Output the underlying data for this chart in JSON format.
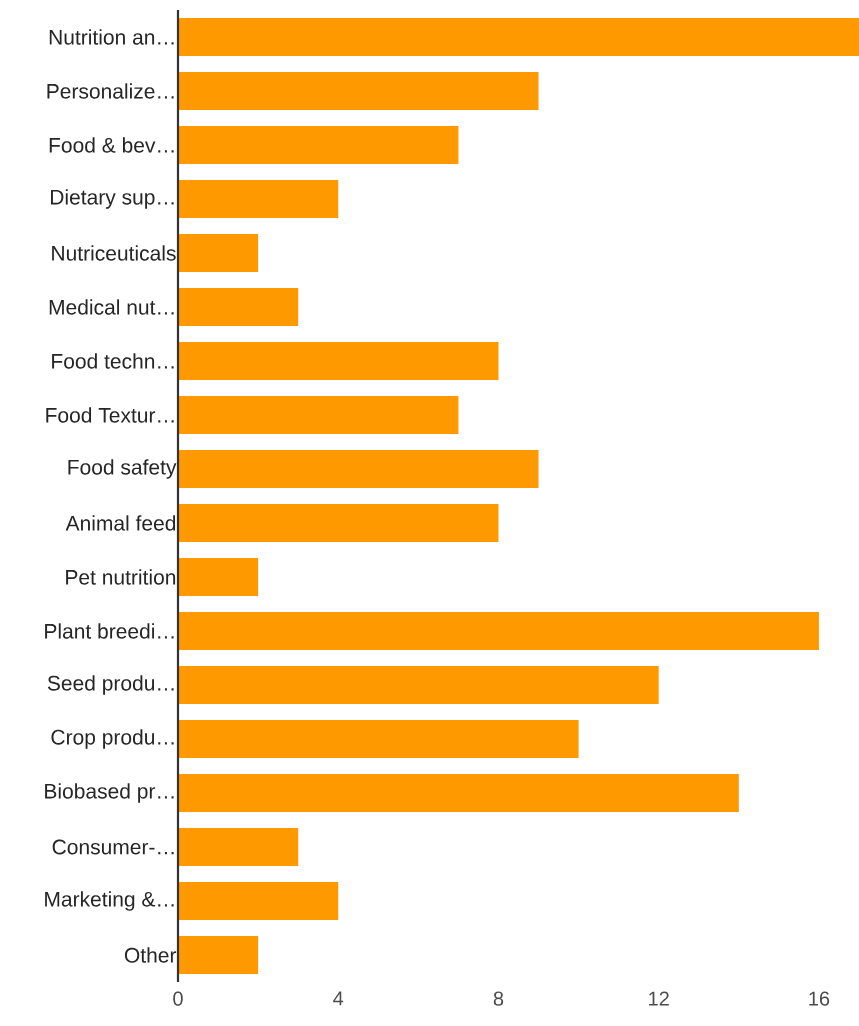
{
  "chart_data": {
    "type": "bar",
    "orientation": "horizontal",
    "categories": [
      "Nutrition an…",
      "Personalize…",
      "Food & bev…",
      "Dietary sup…",
      "Nutriceuticals",
      "Medical nut…",
      "Food techn…",
      "Food Textur…",
      "Food safety",
      "Animal feed",
      "Pet nutrition",
      "Plant breedi…",
      "Seed produ…",
      "Crop produ…",
      "Biobased pr…",
      "Consumer-…",
      "Marketing &…",
      "Other"
    ],
    "values": [
      17,
      9,
      7,
      4,
      2,
      3,
      8,
      7,
      9,
      8,
      2,
      16,
      12,
      10,
      14,
      3,
      4,
      2
    ],
    "color": "#ff9900",
    "xlim": [
      0,
      17
    ],
    "xticks": [
      0,
      4,
      8,
      12,
      16
    ],
    "grid": false
  }
}
